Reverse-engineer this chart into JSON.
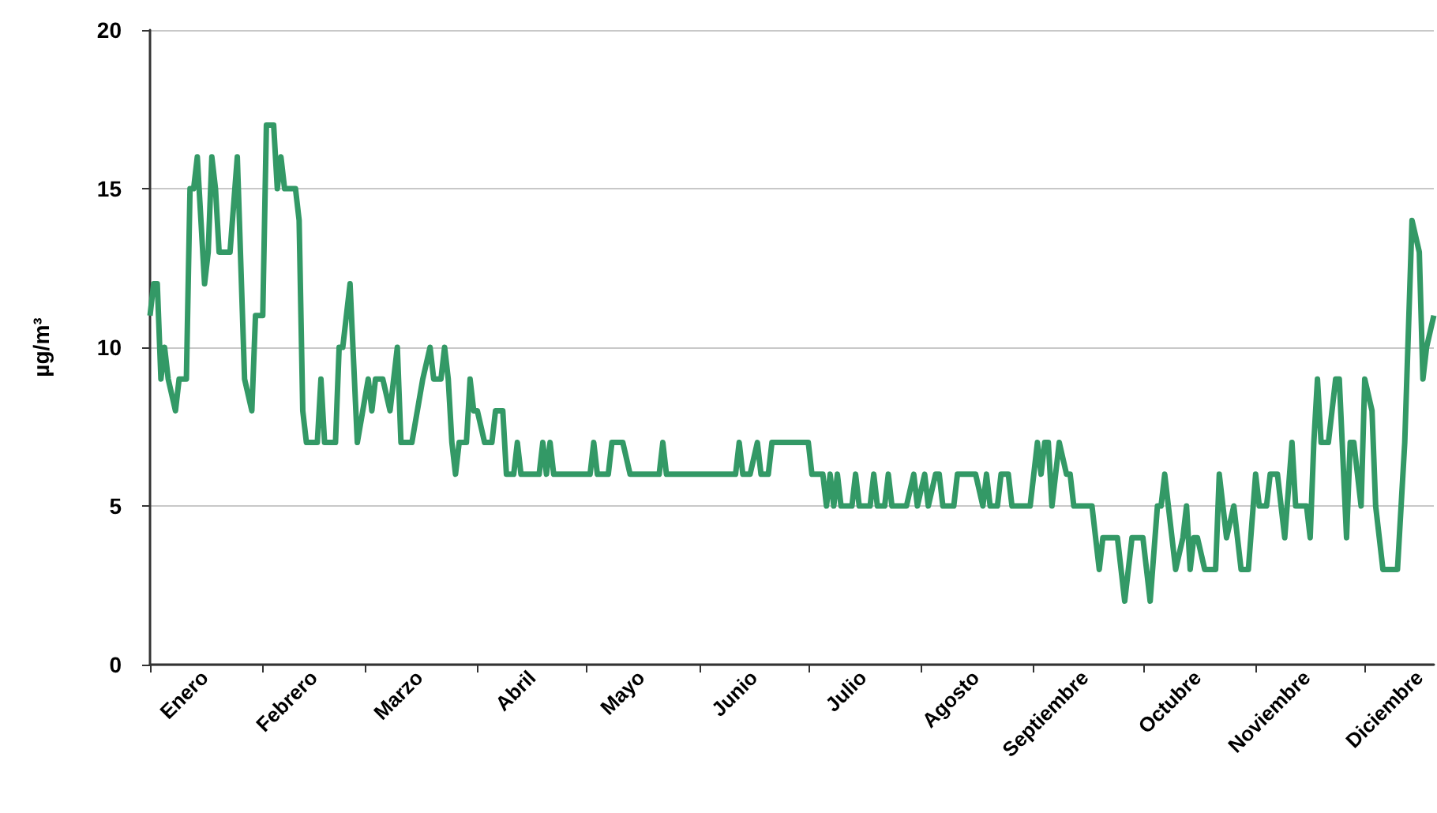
{
  "chart_data": {
    "type": "line",
    "ylabel": "µg/m³",
    "x": [
      "--01-01",
      "--01-02",
      "--01-03",
      "--01-04",
      "--01-05",
      "--01-06",
      "--01-08",
      "--01-09",
      "--01-11",
      "--01-12",
      "--01-13",
      "--01-14",
      "--01-16",
      "--01-17",
      "--01-18",
      "--01-19",
      "--01-20",
      "--01-23",
      "--01-25",
      "--01-27",
      "--01-29",
      "--01-30",
      "--02-01",
      "--02-02",
      "--02-04",
      "--02-05",
      "--02-06",
      "--02-07",
      "--02-10",
      "--02-11",
      "--02-12",
      "--02-13",
      "--02-16",
      "--02-17",
      "--02-18",
      "--02-21",
      "--02-22",
      "--02-23",
      "--02-25",
      "--02-27",
      "--03-02",
      "--03-03",
      "--03-04",
      "--03-06",
      "--03-08",
      "--03-10",
      "--03-11",
      "--03-14",
      "--03-17",
      "--03-19",
      "--03-20",
      "--03-22",
      "--03-23",
      "--03-24",
      "--03-25",
      "--03-26",
      "--03-27",
      "--03-29",
      "--03-30",
      "--03-31",
      "--04-01",
      "--04-03",
      "--04-05",
      "--04-06",
      "--04-08",
      "--04-09",
      "--04-11",
      "--04-12",
      "--04-13",
      "--04-18",
      "--04-19",
      "--04-20",
      "--04-21",
      "--04-22",
      "--04-30",
      "--05-02",
      "--05-03",
      "--05-04",
      "--05-07",
      "--05-08",
      "--05-11",
      "--05-13",
      "--05-21",
      "--05-22",
      "--05-23",
      "--06-11",
      "--06-12",
      "--06-13",
      "--06-15",
      "--06-17",
      "--06-18",
      "--06-20",
      "--06-21",
      "--07-01",
      "--07-02",
      "--07-05",
      "--07-06",
      "--07-07",
      "--07-08",
      "--07-09",
      "--07-10",
      "--07-13",
      "--07-14",
      "--07-15",
      "--07-18",
      "--07-19",
      "--07-20",
      "--07-22",
      "--07-23",
      "--07-24",
      "--07-28",
      "--07-30",
      "--07-31",
      "--08-02",
      "--08-03",
      "--08-05",
      "--08-06",
      "--08-07",
      "--08-10",
      "--08-11",
      "--08-16",
      "--08-18",
      "--08-19",
      "--08-20",
      "--08-22",
      "--08-23",
      "--08-25",
      "--08-26",
      "--08-31",
      "--09-01",
      "--09-02",
      "--09-03",
      "--09-04",
      "--09-05",
      "--09-06",
      "--09-08",
      "--09-10",
      "--09-11",
      "--09-12",
      "--09-17",
      "--09-19",
      "--09-20",
      "--09-24",
      "--09-26",
      "--09-28",
      "--10-01",
      "--10-03",
      "--10-05",
      "--10-06",
      "--10-07",
      "--10-10",
      "--10-12",
      "--10-13",
      "--10-14",
      "--10-15",
      "--10-16",
      "--10-18",
      "--10-21",
      "--10-22",
      "--10-24",
      "--10-26",
      "--10-27",
      "--10-28",
      "--10-30",
      "--11-01",
      "--11-02",
      "--11-04",
      "--11-05",
      "--11-07",
      "--11-09",
      "--11-11",
      "--11-12",
      "--11-15",
      "--11-16",
      "--11-17",
      "--11-18",
      "--11-19",
      "--11-21",
      "--11-23",
      "--11-24",
      "--11-26",
      "--11-27",
      "--11-28",
      "--11-30",
      "--12-01",
      "--12-03",
      "--12-04",
      "--12-05",
      "--12-06",
      "--12-10",
      "--12-12",
      "--12-14",
      "--12-16",
      "--12-17",
      "--12-18",
      "--12-20"
    ],
    "series": [
      {
        "color": "#339966",
        "values": [
          11,
          12,
          12,
          9,
          10,
          9,
          8,
          9,
          9,
          15,
          15,
          16,
          12,
          13,
          16,
          15,
          13,
          13,
          16,
          9,
          8,
          11,
          11,
          17,
          17,
          15,
          16,
          15,
          15,
          14,
          8,
          7,
          7,
          9,
          7,
          7,
          10,
          10,
          12,
          7,
          9,
          8,
          9,
          9,
          8,
          10,
          7,
          7,
          9,
          10,
          9,
          9,
          10,
          9,
          7,
          6,
          7,
          7,
          9,
          8,
          8,
          7,
          7,
          8,
          8,
          6,
          6,
          7,
          6,
          6,
          7,
          6,
          7,
          6,
          6,
          6,
          7,
          6,
          6,
          7,
          7,
          6,
          6,
          7,
          6,
          6,
          7,
          6,
          6,
          7,
          6,
          6,
          7,
          7,
          6,
          6,
          5,
          6,
          5,
          6,
          5,
          5,
          6,
          5,
          5,
          6,
          5,
          5,
          6,
          5,
          5,
          6,
          5,
          6,
          5,
          6,
          6,
          5,
          5,
          6,
          6,
          5,
          6,
          5,
          5,
          6,
          6,
          5,
          5,
          6,
          7,
          6,
          7,
          7,
          5,
          7,
          6,
          6,
          5,
          5,
          3,
          4,
          4,
          2,
          4,
          4,
          2,
          5,
          5,
          6,
          3,
          4,
          5,
          3,
          4,
          4,
          3,
          3,
          6,
          4,
          5,
          4,
          3,
          3,
          6,
          5,
          5,
          6,
          6,
          4,
          7,
          5,
          5,
          4,
          7,
          9,
          7,
          7,
          9,
          9,
          4,
          7,
          7,
          5,
          9,
          8,
          5,
          4,
          3,
          3,
          7,
          14,
          13,
          9,
          10,
          11
        ]
      }
    ],
    "xlim": [
      "--01-01",
      "--12-20"
    ],
    "xticks": [
      {
        "value": "--01-01",
        "label": null
      },
      {
        "value": "--01-16",
        "label": "Enero"
      },
      {
        "value": "--02-01",
        "label": null
      },
      {
        "value": "--02-15",
        "label": "Febrero"
      },
      {
        "value": "--03-01",
        "label": null
      },
      {
        "value": "--03-16",
        "label": "Marzo"
      },
      {
        "value": "--04-01",
        "label": null
      },
      {
        "value": "--04-16",
        "label": "Abril"
      },
      {
        "value": "--05-01",
        "label": null
      },
      {
        "value": "--05-16",
        "label": "Mayo"
      },
      {
        "value": "--06-01",
        "label": null
      },
      {
        "value": "--06-16",
        "label": "Junio"
      },
      {
        "value": "--07-01",
        "label": null
      },
      {
        "value": "--07-16",
        "label": "Julio"
      },
      {
        "value": "--08-01",
        "label": null
      },
      {
        "value": "--08-16",
        "label": "Agosto"
      },
      {
        "value": "--09-01",
        "label": null
      },
      {
        "value": "--09-15",
        "label": "Septiembre"
      },
      {
        "value": "--10-01",
        "label": null
      },
      {
        "value": "--10-16",
        "label": "Octubre"
      },
      {
        "value": "--11-01",
        "label": null
      },
      {
        "value": "--11-15",
        "label": "Noviembre"
      },
      {
        "value": "--12-01",
        "label": null
      },
      {
        "value": "--12-16",
        "label": "Diciembre"
      }
    ],
    "ylim": [
      0,
      20
    ],
    "yticks": [
      0,
      5,
      10,
      15,
      20
    ],
    "grid": "y",
    "marker": "none"
  }
}
